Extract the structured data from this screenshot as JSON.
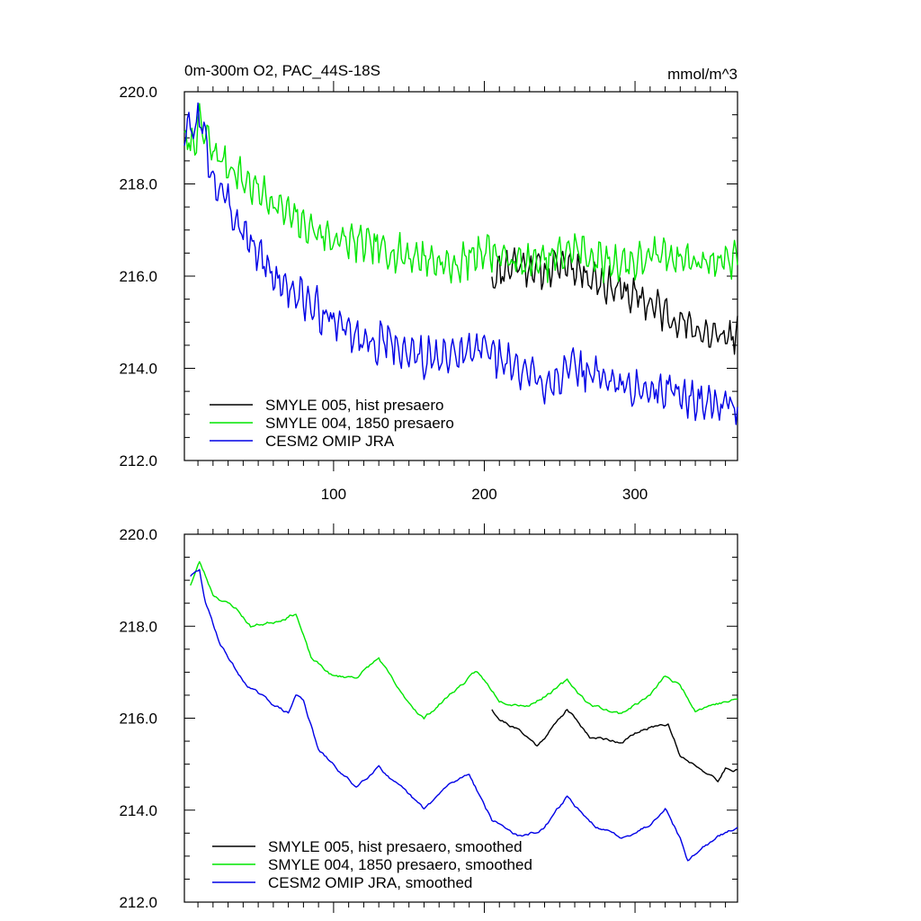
{
  "figure": {
    "title_left": "0m-300m O2, PAC_44S-18S",
    "title_right": "mmol/m^3"
  },
  "colors": {
    "smyle005": "#000000",
    "smyle004": "#00e600",
    "omip": "#0000e6"
  },
  "chart_data": [
    {
      "type": "line",
      "panel": "top",
      "xlim": [
        1,
        368
      ],
      "ylim": [
        212.0,
        220.0
      ],
      "x_ticks": [
        100,
        200,
        300
      ],
      "x_tick_labels": [
        "100",
        "200",
        "300"
      ],
      "y_ticks": [
        212,
        214,
        216,
        218,
        220
      ],
      "y_tick_labels": [
        "212.0",
        "214.0",
        "216.0",
        "218.0",
        "220.0"
      ],
      "legend_position": "bottom-left",
      "smooth": false,
      "series": [
        {
          "name": "SMYLE 005, hist presaero",
          "color": "#000000",
          "start": 205,
          "anchors": [
            [
              205,
              216.0
            ],
            [
              220,
              216.3
            ],
            [
              240,
              216.1
            ],
            [
              255,
              216.3
            ],
            [
              270,
              216.0
            ],
            [
              290,
              215.7
            ],
            [
              310,
              215.4
            ],
            [
              330,
              215.0
            ],
            [
              350,
              214.7
            ],
            [
              368,
              214.7
            ]
          ],
          "noise": 0.45,
          "seed": 11
        },
        {
          "name": "SMYLE 004, 1850 presaero",
          "color": "#00e600",
          "start": 1,
          "anchors": [
            [
              1,
              219.0
            ],
            [
              6,
              218.8
            ],
            [
              11,
              219.3
            ],
            [
              20,
              218.7
            ],
            [
              40,
              218.1
            ],
            [
              60,
              217.6
            ],
            [
              80,
              217.1
            ],
            [
              100,
              216.8
            ],
            [
              120,
              216.7
            ],
            [
              140,
              216.5
            ],
            [
              160,
              216.4
            ],
            [
              180,
              216.2
            ],
            [
              200,
              216.6
            ],
            [
              220,
              216.3
            ],
            [
              240,
              216.3
            ],
            [
              260,
              216.6
            ],
            [
              280,
              216.3
            ],
            [
              300,
              216.3
            ],
            [
              320,
              216.5
            ],
            [
              340,
              216.3
            ],
            [
              368,
              216.4
            ]
          ],
          "noise": 0.45,
          "seed": 7
        },
        {
          "name": "CESM2 OMIP JRA",
          "color": "#0000e6",
          "start": 1,
          "anchors": [
            [
              1,
              219.2
            ],
            [
              6,
              219.1
            ],
            [
              11,
              219.5
            ],
            [
              20,
              218.1
            ],
            [
              40,
              217.0
            ],
            [
              60,
              216.0
            ],
            [
              80,
              215.5
            ],
            [
              100,
              215.0
            ],
            [
              120,
              214.6
            ],
            [
              140,
              214.5
            ],
            [
              160,
              214.2
            ],
            [
              180,
              214.2
            ],
            [
              200,
              214.5
            ],
            [
              220,
              214.0
            ],
            [
              240,
              213.7
            ],
            [
              260,
              214.0
            ],
            [
              280,
              213.8
            ],
            [
              300,
              213.5
            ],
            [
              320,
              213.6
            ],
            [
              340,
              213.3
            ],
            [
              368,
              213.2
            ]
          ],
          "noise": 0.5,
          "seed": 3
        }
      ]
    },
    {
      "type": "line",
      "panel": "bottom",
      "xlim": [
        1,
        368
      ],
      "ylim": [
        212.0,
        220.0
      ],
      "x_ticks": [
        100,
        200,
        300
      ],
      "x_tick_labels": [
        "",
        "",
        ""
      ],
      "y_ticks": [
        212,
        214,
        216,
        218,
        220
      ],
      "y_tick_labels": [
        "212.0",
        "214.0",
        "216.0",
        "218.0",
        "220.0"
      ],
      "legend_position": "bottom-left",
      "smooth": true,
      "series": [
        {
          "name": "SMYLE 005, hist presaero, smoothed",
          "color": "#000000",
          "start": 205,
          "anchors": [
            [
              205,
              216.2
            ],
            [
              210,
              216.0
            ],
            [
              225,
              215.7
            ],
            [
              235,
              215.4
            ],
            [
              255,
              216.2
            ],
            [
              270,
              215.6
            ],
            [
              290,
              215.5
            ],
            [
              310,
              215.8
            ],
            [
              322,
              215.9
            ],
            [
              330,
              215.2
            ],
            [
              345,
              214.9
            ],
            [
              355,
              214.6
            ],
            [
              360,
              214.9
            ],
            [
              368,
              214.9
            ]
          ],
          "noise": 0.2,
          "seed": 21
        },
        {
          "name": "SMYLE 004, 1850 presaero, smoothed",
          "color": "#00e600",
          "start": 5,
          "anchors": [
            [
              5,
              218.9
            ],
            [
              11,
              219.4
            ],
            [
              20,
              218.7
            ],
            [
              35,
              218.4
            ],
            [
              45,
              218.0
            ],
            [
              60,
              218.1
            ],
            [
              75,
              218.3
            ],
            [
              85,
              217.3
            ],
            [
              100,
              216.9
            ],
            [
              115,
              216.9
            ],
            [
              130,
              217.3
            ],
            [
              145,
              216.5
            ],
            [
              160,
              216.0
            ],
            [
              180,
              216.6
            ],
            [
              195,
              217.0
            ],
            [
              210,
              216.4
            ],
            [
              230,
              216.3
            ],
            [
              255,
              216.8
            ],
            [
              270,
              216.3
            ],
            [
              290,
              216.1
            ],
            [
              310,
              216.5
            ],
            [
              320,
              216.9
            ],
            [
              330,
              216.7
            ],
            [
              340,
              216.2
            ],
            [
              350,
              216.3
            ],
            [
              368,
              216.4
            ]
          ],
          "noise": 0.2,
          "seed": 23
        },
        {
          "name": "CESM2 OMIP JRA, smoothed",
          "color": "#0000e6",
          "start": 5,
          "anchors": [
            [
              5,
              219.1
            ],
            [
              11,
              219.2
            ],
            [
              15,
              218.5
            ],
            [
              25,
              217.6
            ],
            [
              40,
              216.8
            ],
            [
              55,
              216.4
            ],
            [
              70,
              216.1
            ],
            [
              75,
              216.5
            ],
            [
              80,
              216.4
            ],
            [
              90,
              215.3
            ],
            [
              105,
              214.8
            ],
            [
              115,
              214.5
            ],
            [
              130,
              215.0
            ],
            [
              140,
              214.6
            ],
            [
              160,
              214.0
            ],
            [
              175,
              214.5
            ],
            [
              190,
              214.8
            ],
            [
              205,
              213.8
            ],
            [
              215,
              213.6
            ],
            [
              225,
              213.4
            ],
            [
              240,
              213.6
            ],
            [
              255,
              214.3
            ],
            [
              270,
              213.7
            ],
            [
              290,
              213.4
            ],
            [
              310,
              213.7
            ],
            [
              320,
              214.1
            ],
            [
              330,
              213.4
            ],
            [
              335,
              212.9
            ],
            [
              345,
              213.2
            ],
            [
              360,
              213.5
            ],
            [
              368,
              213.6
            ]
          ],
          "noise": 0.2,
          "seed": 29
        }
      ]
    }
  ]
}
